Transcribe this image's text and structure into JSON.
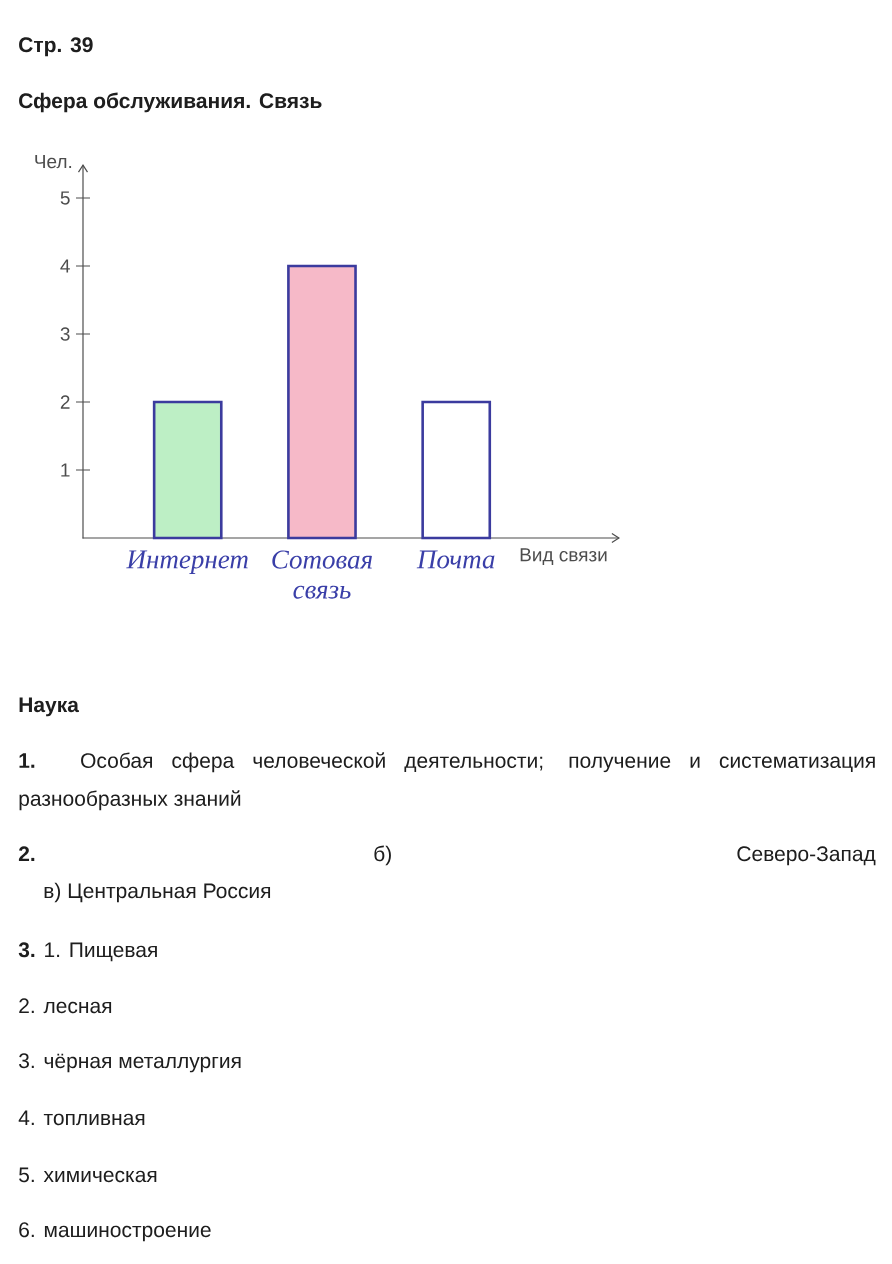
{
  "chart_data": {
    "type": "bar",
    "title": "Сфера обслуживания. Связь",
    "xlabel": "Вид связи",
    "ylabel": "Чел.",
    "categories": [
      "Интернет",
      "Сотовая связь",
      "Почта"
    ],
    "values": [
      2,
      4,
      2
    ],
    "colors": [
      "#bdefc5",
      "#f6b9c8",
      "#ffffff"
    ],
    "ylim": [
      0,
      5.5
    ],
    "yticks": [
      1,
      2,
      3,
      4,
      5
    ],
    "annotations": [
      "Стр. 39",
      "Наука",
      "**1.** Особая сфера человеческой деятельности; получение и систематизация разнообразных знаний",
      "2.",
      "б)",
      "Северо-Запад",
      "в) Центральная Россия",
      "**3.** 1. Пищевая",
      "2. лесная",
      "3. чёрная металлургия",
      "4. топливная",
      "5. химическая",
      "6. машиностроение"
    ]
  }
}
